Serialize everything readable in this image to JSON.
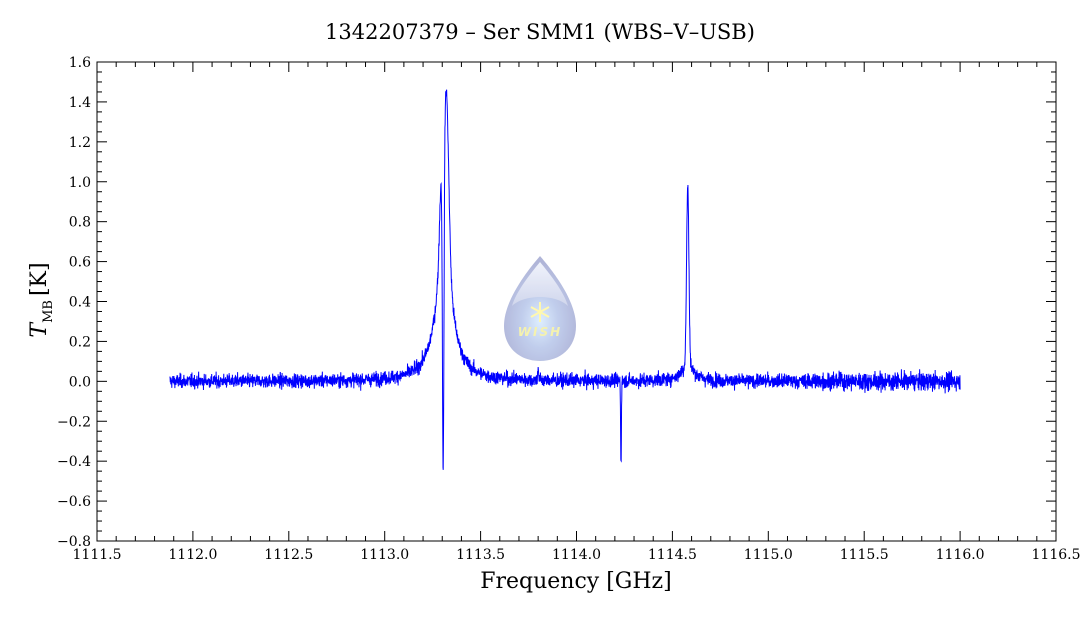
{
  "chart_data": {
    "type": "line",
    "title": "1342207379 – Ser SMM1 (WBS–V–USB)",
    "xlabel": "Frequency [GHz]",
    "ylabel_main": "T",
    "ylabel_sub": "MB",
    "ylabel_unit": "[K]",
    "xlim": [
      1111.5,
      1116.5
    ],
    "ylim": [
      -0.8,
      1.6
    ],
    "x_ticks": [
      1111.5,
      1112.0,
      1112.5,
      1113.0,
      1113.5,
      1114.0,
      1114.5,
      1115.0,
      1115.5,
      1116.0,
      1116.5
    ],
    "x_tick_labels": [
      "1111.5",
      "1112.0",
      "1112.5",
      "1113.0",
      "1113.5",
      "1114.0",
      "1114.5",
      "1115.0",
      "1115.5",
      "1116.0",
      "1116.5"
    ],
    "y_ticks": [
      -0.8,
      -0.6,
      -0.4,
      -0.2,
      0.0,
      0.2,
      0.4,
      0.6,
      0.8,
      1.0,
      1.2,
      1.4,
      1.6
    ],
    "y_tick_labels": [
      "−0.8",
      "−0.6",
      "−0.4",
      "−0.2",
      "0.0",
      "0.2",
      "0.4",
      "0.6",
      "0.8",
      "1.0",
      "1.2",
      "1.4",
      "1.6"
    ],
    "grid": false,
    "series": [
      {
        "name": "spectrum",
        "color": "#0000ff",
        "x_range": [
          1111.88,
          1116.0
        ],
        "channel_width": 0.001,
        "baseline": 0.0,
        "noise_rms": 0.035,
        "components": [
          {
            "kind": "broad-emission",
            "center": 1113.31,
            "amplitude": 0.75,
            "width": 0.045
          },
          {
            "kind": "narrow-emission",
            "center": 1113.322,
            "amplitude": 0.75,
            "width": 0.012
          },
          {
            "kind": "narrow-emission",
            "center": 1113.293,
            "amplitude": 0.3,
            "width": 0.008
          },
          {
            "kind": "absorption",
            "center": 1113.305,
            "amplitude": -1.55,
            "width": 0.004
          },
          {
            "kind": "absorption",
            "center": 1114.232,
            "amplitude": -0.42,
            "width": 0.002
          },
          {
            "kind": "narrow-emission",
            "center": 1114.58,
            "amplitude": 0.9,
            "width": 0.006
          },
          {
            "kind": "broad-emission",
            "center": 1114.58,
            "amplitude": 0.08,
            "width": 0.04
          },
          {
            "kind": "spike",
            "center": 1113.8,
            "amplitude": 0.08,
            "width": 0.002
          }
        ],
        "peaks": [
          {
            "x": 1113.32,
            "y": 1.37
          },
          {
            "x": 1113.295,
            "y": 0.96
          },
          {
            "x": 1113.305,
            "y": -0.58
          },
          {
            "x": 1114.232,
            "y": -0.42
          },
          {
            "x": 1114.58,
            "y": 0.96
          }
        ]
      }
    ],
    "watermark": "WISH"
  }
}
